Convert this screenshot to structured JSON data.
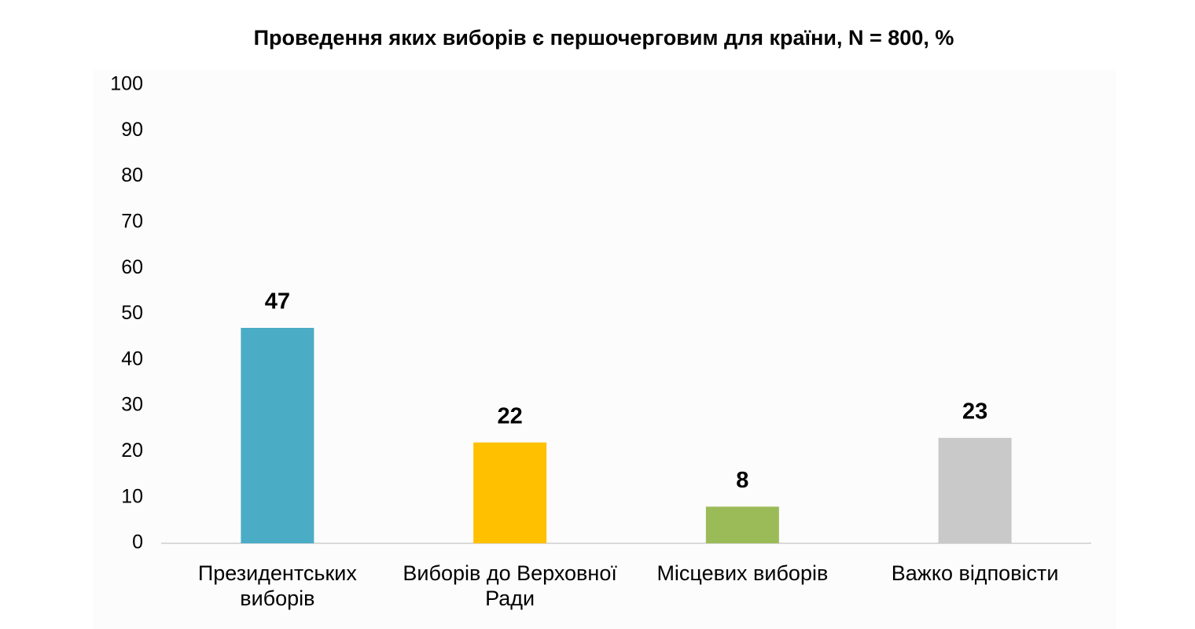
{
  "chart_data": {
    "type": "bar",
    "title": "Проведення яких виборів є першочерговим для країни, N = 800, %",
    "categories": [
      "Президентських виборів",
      "Виборів до Верховної Ради",
      "Місцевих виборів",
      "Важко відповісти"
    ],
    "values": [
      47,
      22,
      8,
      23
    ],
    "colors": [
      "#4bacc6",
      "#ffc000",
      "#9bbb59",
      "#c9c9c9"
    ],
    "ylim": [
      0,
      100
    ],
    "yticks": [
      0,
      10,
      20,
      30,
      40,
      50,
      60,
      70,
      80,
      90,
      100
    ],
    "grid": false
  }
}
